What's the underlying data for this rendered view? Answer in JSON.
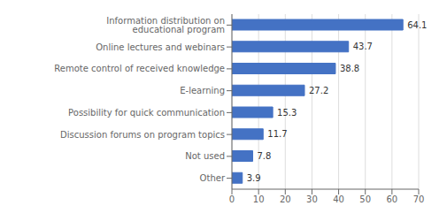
{
  "chart_data": {
    "type": "bar",
    "orientation": "horizontal",
    "categories": [
      "Other",
      "Not used",
      "Discussion forums on program topics",
      "Possibility for quick communication",
      "E-learning",
      "Remote control of received knowledge",
      "Online lectures and webinars",
      "Information distribution on educational program"
    ],
    "values": [
      3.9,
      7.8,
      11.7,
      15.3,
      27.2,
      38.8,
      43.7,
      64.1
    ],
    "color": "#4472C4",
    "xlim": [
      0,
      70
    ],
    "xticks": [
      0,
      10,
      20,
      30,
      40,
      50,
      60,
      70
    ],
    "grid": true,
    "data_labels": true
  }
}
